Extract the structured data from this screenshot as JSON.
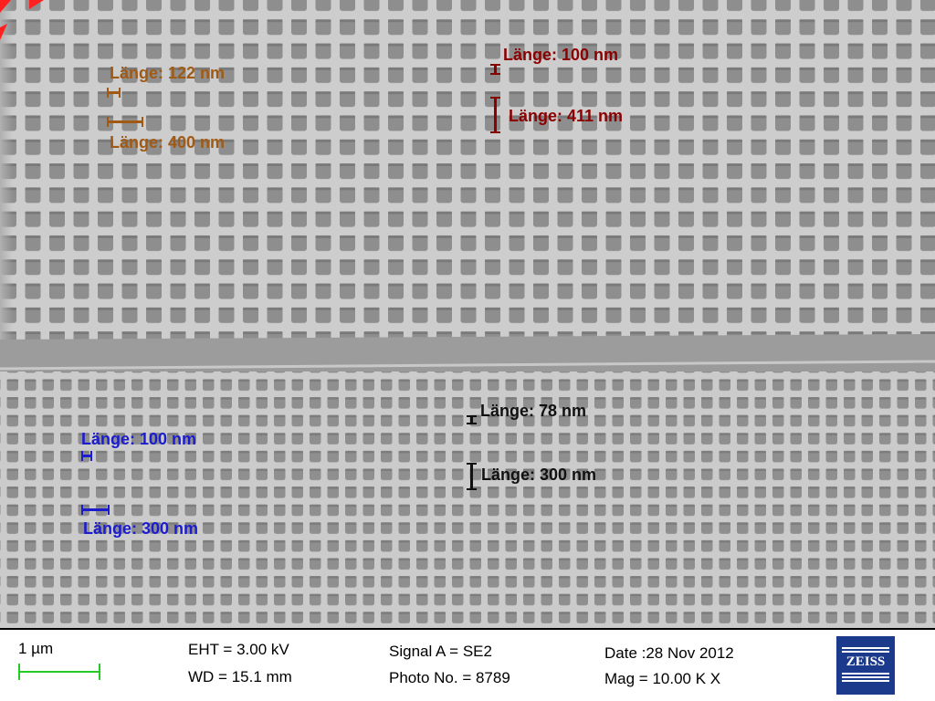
{
  "image": {
    "alt_subject": "SEM micrograph of square-hole lattice",
    "colors": {
      "surface": "#c9c9c9",
      "hole": "#8f8f8f",
      "trench": "#9c9c9c",
      "brown": "#a05a14",
      "darkred": "#8b0000",
      "blue": "#1c1ccf",
      "black": "#111111",
      "corner_marker": "#ff2020"
    }
  },
  "measurements": {
    "brown_top": "Länge: 122 nm",
    "brown_bottom": "Länge: 400 nm",
    "red_top": "Länge: 100 nm",
    "red_bottom": "Länge: 411 nm",
    "blue_top": "Länge: 100 nm",
    "blue_bottom": "Länge: 300 nm",
    "black_top": "Länge: 78 nm",
    "black_bottom": "Länge: 300 nm"
  },
  "info_panel": {
    "scale_label": "1 µm",
    "eht": "EHT =  3.00 kV",
    "wd": "WD = 15.1 mm",
    "signal": "Signal A = SE2",
    "photo_no": "Photo No. = 8789",
    "date": "Date :28 Nov 2012",
    "mag": "Mag =  10.00 K X",
    "logo_text": "ZEISS",
    "colors": {
      "scale_bar": "#22cc22",
      "logo_bg": "#1c3a8c"
    }
  }
}
